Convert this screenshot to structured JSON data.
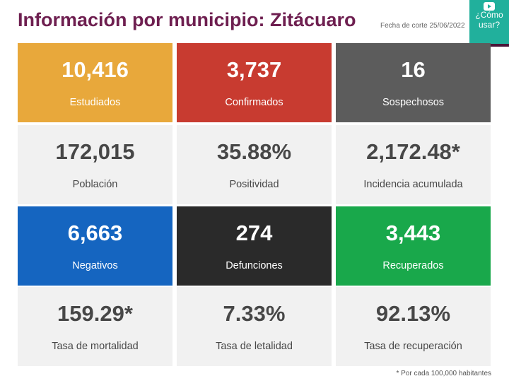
{
  "header": {
    "title": "Información por municipio: Zitácuaro",
    "date": "Fecha de corte 25/06/2022",
    "help": "¿Cómo usar?"
  },
  "rows": [
    [
      {
        "value": "10,416",
        "label": "Estudiados"
      },
      {
        "value": "3,737",
        "label": "Confirmados"
      },
      {
        "value": "16",
        "label": "Sospechosos"
      }
    ],
    [
      {
        "value": "172,015",
        "label": "Población"
      },
      {
        "value": "35.88%",
        "label": "Positividad"
      },
      {
        "value": "2,172.48*",
        "label": "Incidencia acumulada"
      }
    ],
    [
      {
        "value": "6,663",
        "label": "Negativos"
      },
      {
        "value": "274",
        "label": "Defunciones"
      },
      {
        "value": "3,443",
        "label": "Recuperados"
      }
    ],
    [
      {
        "value": "159.29*",
        "label": "Tasa de mortalidad"
      },
      {
        "value": "7.33%",
        "label": "Tasa de letalidad"
      },
      {
        "value": "92.13%",
        "label": "Tasa de recuperación"
      }
    ]
  ],
  "footnote": "* Por cada 100,000 habitantes"
}
